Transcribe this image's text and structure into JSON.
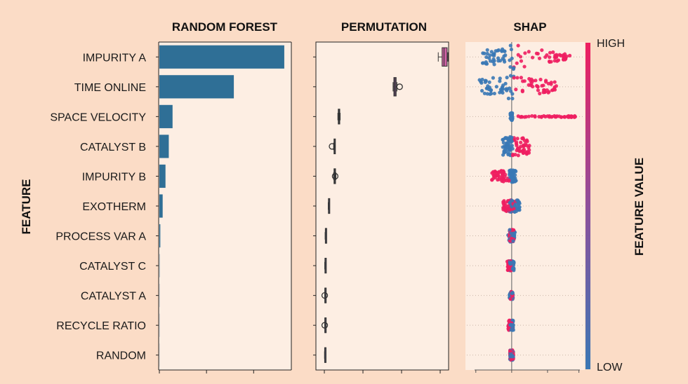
{
  "chart_data": {
    "type": "feature_importance_comparison",
    "ylabel": "FEATURE",
    "features": [
      "IMPURITY A",
      "TIME ONLINE",
      "SPACE VELOCITY",
      "CATALYST B",
      "IMPURITY B",
      "EXOTHERM",
      "PROCESS VAR A",
      "CATALYST C",
      "CATALYST A",
      "RECYCLE RATIO",
      "RANDOM"
    ],
    "panels": [
      {
        "type": "bar",
        "title": "RANDOM FOREST",
        "xlim": [
          0,
          0.28
        ],
        "values": [
          0.265,
          0.158,
          0.028,
          0.02,
          0.013,
          0.007,
          0.002,
          0.0005,
          0.0003,
          0.0003,
          0.0002
        ],
        "color": "#2f6f96"
      },
      {
        "type": "box",
        "title": "PERMUTATION",
        "xlim": [
          -0.02,
          0.32
        ],
        "boxes": [
          {
            "min": 0.295,
            "q1": 0.305,
            "median": 0.31,
            "q3": 0.318,
            "max": 0.32,
            "outliers": [],
            "color": "#c860a0"
          },
          {
            "min": 0.178,
            "q1": 0.18,
            "median": 0.183,
            "q3": 0.186,
            "max": 0.188,
            "outliers": [
              0.195
            ],
            "color": "#6b4a6e"
          },
          {
            "min": 0.035,
            "q1": 0.036,
            "median": 0.038,
            "q3": 0.04,
            "max": 0.041,
            "outliers": [],
            "color": "#4a4a5a"
          },
          {
            "min": 0.024,
            "q1": 0.025,
            "median": 0.026,
            "q3": 0.027,
            "max": 0.028,
            "outliers": [
              0.02
            ],
            "color": "#4a4a5a"
          },
          {
            "min": 0.024,
            "q1": 0.025,
            "median": 0.027,
            "q3": 0.029,
            "max": 0.03,
            "outliers": [
              0.028
            ],
            "color": "#4a4a5a"
          },
          {
            "min": 0.01,
            "q1": 0.0105,
            "median": 0.011,
            "q3": 0.0115,
            "max": 0.012,
            "outliers": [],
            "color": "#4a4a5a"
          },
          {
            "min": 0.002,
            "q1": 0.0025,
            "median": 0.003,
            "q3": 0.0035,
            "max": 0.004,
            "outliers": [],
            "color": "#4a4a5a"
          },
          {
            "min": 0.001,
            "q1": 0.0015,
            "median": 0.002,
            "q3": 0.0025,
            "max": 0.003,
            "outliers": [],
            "color": "#4a4a5a"
          },
          {
            "min": 0.001,
            "q1": 0.0012,
            "median": 0.0015,
            "q3": 0.0018,
            "max": 0.002,
            "outliers": [
              0.001
            ],
            "color": "#4a4a5a"
          },
          {
            "min": 0.001,
            "q1": 0.0012,
            "median": 0.0015,
            "q3": 0.0018,
            "max": 0.002,
            "outliers": [
              0.001
            ],
            "color": "#4a4a5a"
          },
          {
            "min": 0.0005,
            "q1": 0.0008,
            "median": 0.001,
            "q3": 0.0012,
            "max": 0.0015,
            "outliers": [],
            "color": "#4a4a5a"
          }
        ]
      },
      {
        "type": "beeswarm",
        "title": "SHAP",
        "xlim": [
          -1.0,
          1.6
        ],
        "rows": [
          {
            "low_range": [
              -0.65,
              0.05
            ],
            "high_range": [
              0.05,
              1.3
            ],
            "spread": 1.0
          },
          {
            "low_range": [
              -0.72,
              0.05
            ],
            "high_range": [
              0.05,
              1.0
            ],
            "spread": 1.0
          },
          {
            "low_range": [
              -0.03,
              0.02
            ],
            "high_range": [
              0.05,
              1.45
            ],
            "spread": 0.3,
            "sparse_high": true
          },
          {
            "low_range": [
              -0.2,
              0.02
            ],
            "high_range": [
              0.02,
              0.4
            ],
            "spread": 0.8
          },
          {
            "low_range": [
              -0.05,
              0.1
            ],
            "high_range": [
              -0.45,
              -0.05
            ],
            "spread": 0.5
          },
          {
            "low_range": [
              -0.05,
              0.18
            ],
            "high_range": [
              -0.2,
              0.1
            ],
            "spread": 0.5
          },
          {
            "low_range": [
              -0.08,
              0.08
            ],
            "high_range": [
              -0.05,
              0.05
            ],
            "spread": 0.5
          },
          {
            "low_range": [
              -0.05,
              0.05
            ],
            "high_range": [
              -0.1,
              0.0
            ],
            "spread": 0.4
          },
          {
            "low_range": [
              -0.05,
              0.03
            ],
            "high_range": [
              -0.03,
              0.02
            ],
            "spread": 0.3
          },
          {
            "low_range": [
              -0.06,
              0.04
            ],
            "high_range": [
              -0.08,
              0.02
            ],
            "spread": 0.4
          },
          {
            "low_range": [
              -0.04,
              0.04
            ],
            "high_range": [
              -0.04,
              0.04
            ],
            "spread": 0.4
          }
        ],
        "color_low": "#3a78b5",
        "color_high": "#ee1e60"
      }
    ],
    "colorbar": {
      "label": "FEATURE VALUE",
      "high_label": "HIGH",
      "low_label": "LOW",
      "color_low": "#3a78b5",
      "color_high": "#ee1e60"
    }
  }
}
